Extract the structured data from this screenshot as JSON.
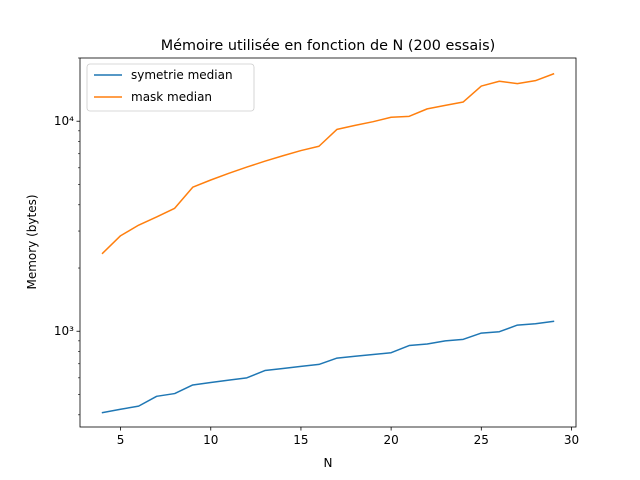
{
  "chart_data": {
    "type": "line",
    "title": "Mémoire utilisée en fonction de N (200 essais)",
    "xlabel": "N",
    "ylabel": "Memory (bytes)",
    "xlim": [
      2.75,
      30.25
    ],
    "ylim": [
      350,
      20000
    ],
    "yscale": "log",
    "x_ticks": [
      5,
      10,
      15,
      20,
      25,
      30
    ],
    "y_ticks": [
      {
        "value": 1000,
        "label": "10³"
      },
      {
        "value": 10000,
        "label": "10⁴"
      }
    ],
    "grid": false,
    "legend_position": "top-left",
    "x": [
      4,
      5,
      6,
      7,
      8,
      9,
      10,
      11,
      12,
      13,
      14,
      15,
      16,
      17,
      18,
      19,
      20,
      21,
      22,
      23,
      24,
      25,
      26,
      27,
      28,
      29
    ],
    "series": [
      {
        "name": "symetrie median",
        "color": "#1f77b4",
        "values": [
          410,
          425,
          440,
          490,
          505,
          555,
          570,
          585,
          600,
          650,
          665,
          680,
          695,
          745,
          760,
          775,
          790,
          855,
          870,
          900,
          915,
          980,
          995,
          1070,
          1085,
          1115
        ]
      },
      {
        "name": "mask median",
        "color": "#ff7f0e",
        "values": [
          2350,
          2850,
          3200,
          3500,
          3850,
          4850,
          5250,
          5650,
          6050,
          6450,
          6850,
          7250,
          7600,
          9150,
          9550,
          9950,
          10450,
          10550,
          11450,
          11900,
          12350,
          14700,
          15500,
          15100,
          15600,
          16800
        ]
      }
    ]
  }
}
